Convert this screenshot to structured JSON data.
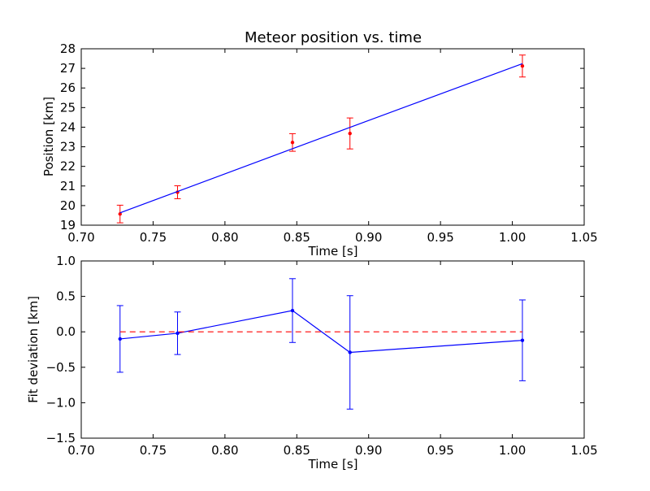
{
  "chart_data": [
    {
      "type": "line",
      "title": "Meteor position vs. time",
      "xlabel": "Time [s]",
      "ylabel": "Position [km]",
      "xlim": [
        0.7,
        1.05
      ],
      "ylim": [
        19,
        28
      ],
      "xticks": [
        "0.70",
        "0.75",
        "0.80",
        "0.85",
        "0.90",
        "0.95",
        "1.00",
        "1.05"
      ],
      "yticks": [
        "19",
        "20",
        "21",
        "22",
        "23",
        "24",
        "25",
        "26",
        "27",
        "28"
      ],
      "series": [
        {
          "kind": "errorbar",
          "color": "#ff0000",
          "x": [
            0.727,
            0.767,
            0.847,
            0.887,
            1.007
          ],
          "y": [
            19.57,
            20.68,
            23.22,
            23.68,
            27.12
          ],
          "yerr": [
            0.45,
            0.33,
            0.45,
            0.79,
            0.56
          ]
        },
        {
          "kind": "fit-line",
          "color": "#0000ff",
          "x": [
            0.727,
            0.767,
            0.847,
            0.887,
            1.007
          ],
          "y": [
            19.63,
            20.72,
            22.9,
            23.99,
            27.24
          ]
        }
      ],
      "grid": false
    },
    {
      "type": "line",
      "title": "",
      "xlabel": "Time [s]",
      "ylabel": "Fit deviation [km]",
      "xlim": [
        0.7,
        1.05
      ],
      "ylim": [
        -1.5,
        1.0
      ],
      "xticks": [
        "0.70",
        "0.75",
        "0.80",
        "0.85",
        "0.90",
        "0.95",
        "1.00",
        "1.05"
      ],
      "yticks": [
        "−1.5",
        "−1.0",
        "−0.5",
        "0.0",
        "0.5",
        "1.0"
      ],
      "series": [
        {
          "kind": "errorbar-line",
          "color": "#0000ff",
          "x": [
            0.727,
            0.767,
            0.847,
            0.887,
            1.007
          ],
          "y": [
            -0.1,
            -0.02,
            0.3,
            -0.29,
            -0.12
          ],
          "yerr": [
            0.47,
            0.3,
            0.45,
            0.8,
            0.57
          ]
        },
        {
          "kind": "zero-line",
          "color": "#ff0000",
          "x": [
            0.727,
            1.007
          ],
          "y": [
            0.0,
            0.0
          ]
        }
      ],
      "grid": false
    }
  ]
}
